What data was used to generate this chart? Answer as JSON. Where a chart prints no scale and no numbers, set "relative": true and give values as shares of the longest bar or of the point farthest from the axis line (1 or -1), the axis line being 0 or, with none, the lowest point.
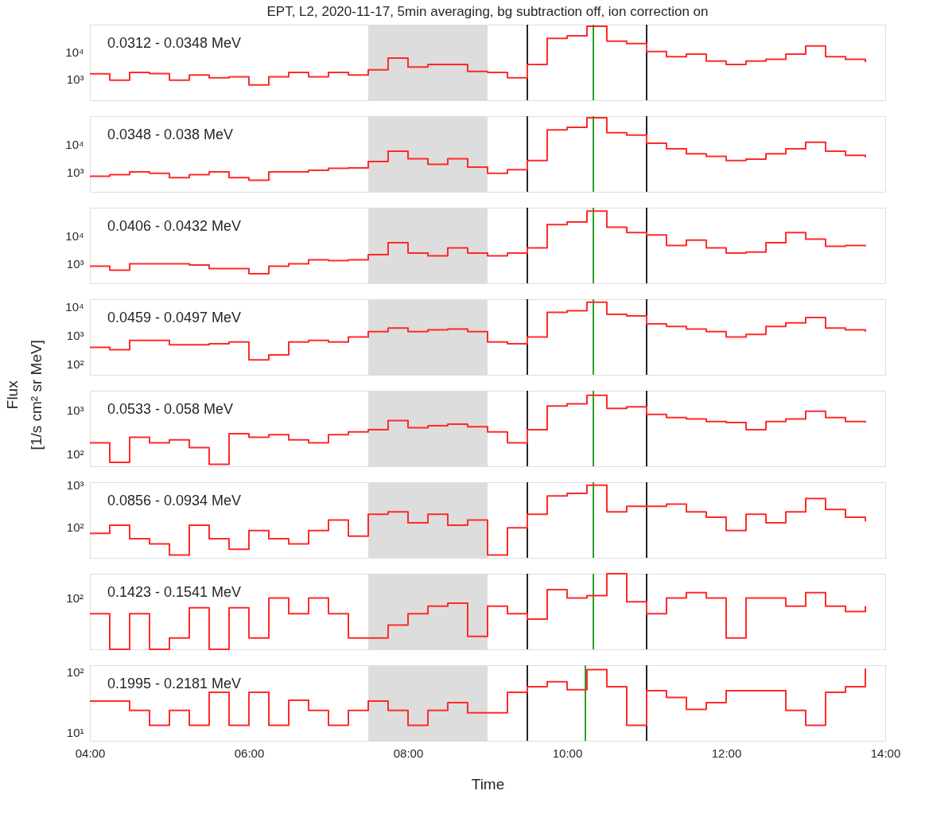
{
  "chart_data": [
    {
      "type": "step",
      "title": "EPT, L2, 2020-11-17, 5min averaging, bg subtraction off, ion correction on",
      "annotations": [
        "0.0312 - 0.0348 MeV"
      ],
      "log": "y",
      "tick_labels": "y",
      "x": [
        4.0,
        4.25,
        4.5,
        4.75,
        5.0,
        5.25,
        5.5,
        5.75,
        6.0,
        6.25,
        6.5,
        6.75,
        7.0,
        7.25,
        7.5,
        7.75,
        8.0,
        8.25,
        8.5,
        8.75,
        9.0,
        9.25,
        9.5,
        9.75,
        10.0,
        10.25,
        10.5,
        10.75,
        11.0,
        11.25,
        11.5,
        11.75,
        12.0,
        12.25,
        12.5,
        12.75,
        13.0,
        13.25,
        13.5,
        13.75
      ],
      "series": [
        {
          "color": "#ff2a2a",
          "values": [
            1550,
            900,
            1750,
            1600,
            900,
            1400,
            1100,
            1200,
            600,
            1200,
            1750,
            1200,
            1750,
            1400,
            2200,
            6000,
            2800,
            3500,
            3500,
            1900,
            1750,
            1100,
            3500,
            33000,
            41000,
            93000,
            26000,
            21000,
            10700,
            6800,
            8500,
            4700,
            3500,
            4700,
            5400,
            8500,
            17000,
            6800,
            5400,
            4300
          ]
        }
      ],
      "xlim": [
        4,
        14
      ],
      "ylim": [
        160,
        107000
      ],
      "yticks": [
        {
          "value": 1000,
          "label": "10³"
        },
        {
          "value": 10000,
          "label": "10⁴"
        }
      ],
      "bands": [
        {
          "axis": "x",
          "from": 7.5,
          "to": 9.0,
          "color": "#dddddd"
        }
      ],
      "ref_lines": [
        {
          "axis": "x",
          "value": 9.5,
          "color": "#262626"
        },
        {
          "axis": "x",
          "value": 11.0,
          "color": "#262626"
        },
        {
          "axis": "x",
          "value": 10.33,
          "color": "#2ca02c"
        }
      ]
    },
    {
      "type": "step",
      "annotations": [
        "0.0348 - 0.038 MeV"
      ],
      "log": "y",
      "tick_labels": "y",
      "x": [
        4.0,
        4.25,
        4.5,
        4.75,
        5.0,
        5.25,
        5.5,
        5.75,
        6.0,
        6.25,
        6.5,
        6.75,
        7.0,
        7.25,
        7.5,
        7.75,
        8.0,
        8.25,
        8.5,
        8.75,
        9.0,
        9.25,
        9.5,
        9.75,
        10.0,
        10.25,
        10.5,
        10.75,
        11.0,
        11.25,
        11.5,
        11.75,
        12.0,
        12.25,
        12.5,
        12.75,
        13.0,
        13.25,
        13.5,
        13.75
      ],
      "series": [
        {
          "color": "#ff2a2a",
          "values": [
            700,
            800,
            1000,
            900,
            620,
            800,
            1000,
            620,
            500,
            1000,
            1000,
            1150,
            1350,
            1400,
            2400,
            5700,
            3000,
            1900,
            3000,
            1500,
            900,
            1200,
            2600,
            34000,
            42000,
            93000,
            27000,
            22000,
            11000,
            7000,
            4600,
            3700,
            2600,
            2900,
            4600,
            7000,
            12000,
            5700,
            4000,
            3400
          ]
        }
      ],
      "xlim": [
        4,
        14
      ],
      "ylim": [
        190,
        107000
      ],
      "yticks": [
        {
          "value": 1000,
          "label": "10³"
        },
        {
          "value": 10000,
          "label": "10⁴"
        }
      ],
      "bands": [
        {
          "axis": "x",
          "from": 7.5,
          "to": 9.0,
          "color": "#dddddd"
        }
      ],
      "ref_lines": [
        {
          "axis": "x",
          "value": 9.5,
          "color": "#262626"
        },
        {
          "axis": "x",
          "value": 11.0,
          "color": "#262626"
        },
        {
          "axis": "x",
          "value": 10.33,
          "color": "#2ca02c"
        }
      ]
    },
    {
      "type": "step",
      "annotations": [
        "0.0406 - 0.0432 MeV"
      ],
      "log": "y",
      "tick_labels": "y",
      "x": [
        4.0,
        4.25,
        4.5,
        4.75,
        5.0,
        5.25,
        5.5,
        5.75,
        6.0,
        6.25,
        6.5,
        6.75,
        7.0,
        7.25,
        7.5,
        7.75,
        8.0,
        8.25,
        8.5,
        8.75,
        9.0,
        9.25,
        9.5,
        9.75,
        10.0,
        10.25,
        10.5,
        10.75,
        11.0,
        11.25,
        11.5,
        11.75,
        12.0,
        12.25,
        12.5,
        12.75,
        13.0,
        13.25,
        13.5,
        13.75
      ],
      "series": [
        {
          "color": "#ff2a2a",
          "values": [
            820,
            590,
            1000,
            1000,
            1000,
            900,
            670,
            670,
            440,
            820,
            1000,
            1380,
            1300,
            1380,
            2100,
            5600,
            2400,
            1900,
            3700,
            2400,
            1900,
            2400,
            3700,
            25000,
            31000,
            76000,
            20000,
            13000,
            10700,
            4500,
            7000,
            3700,
            2400,
            2600,
            5600,
            13000,
            7600,
            4200,
            4500,
            4200
          ]
        }
      ],
      "xlim": [
        4,
        14
      ],
      "ylim": [
        200,
        100000
      ],
      "yticks": [
        {
          "value": 1000,
          "label": "10³"
        },
        {
          "value": 10000,
          "label": "10⁴"
        }
      ],
      "bands": [
        {
          "axis": "x",
          "from": 7.5,
          "to": 9.0,
          "color": "#dddddd"
        }
      ],
      "ref_lines": [
        {
          "axis": "x",
          "value": 9.5,
          "color": "#262626"
        },
        {
          "axis": "x",
          "value": 11.0,
          "color": "#262626"
        },
        {
          "axis": "x",
          "value": 10.33,
          "color": "#2ca02c"
        }
      ]
    },
    {
      "type": "step",
      "annotations": [
        "0.0459 - 0.0497 MeV"
      ],
      "log": "y",
      "tick_labels": "y",
      "x": [
        4.0,
        4.25,
        4.5,
        4.75,
        5.0,
        5.25,
        5.5,
        5.75,
        6.0,
        6.25,
        6.5,
        6.75,
        7.0,
        7.25,
        7.5,
        7.75,
        8.0,
        8.25,
        8.5,
        8.75,
        9.0,
        9.25,
        9.5,
        9.75,
        10.0,
        10.25,
        10.5,
        10.75,
        11.0,
        11.25,
        11.5,
        11.75,
        12.0,
        12.25,
        12.5,
        12.75,
        13.0,
        13.25,
        13.5,
        13.75
      ],
      "series": [
        {
          "color": "#ff2a2a",
          "values": [
            390,
            320,
            680,
            680,
            480,
            480,
            520,
            600,
            140,
            210,
            600,
            680,
            600,
            900,
            1380,
            1850,
            1380,
            1600,
            1700,
            1380,
            600,
            520,
            900,
            6600,
            7500,
            15000,
            5600,
            4900,
            2600,
            2100,
            1700,
            1380,
            900,
            1100,
            2100,
            2800,
            4300,
            1850,
            1600,
            1380
          ]
        }
      ],
      "xlim": [
        4,
        14
      ],
      "ylim": [
        42,
        19000
      ],
      "yticks": [
        {
          "value": 100,
          "label": "10²"
        },
        {
          "value": 1000,
          "label": "10³"
        },
        {
          "value": 10000,
          "label": "10⁴"
        }
      ],
      "bands": [
        {
          "axis": "x",
          "from": 7.5,
          "to": 9.0,
          "color": "#dddddd"
        }
      ],
      "ref_lines": [
        {
          "axis": "x",
          "value": 9.5,
          "color": "#262626"
        },
        {
          "axis": "x",
          "value": 11.0,
          "color": "#262626"
        },
        {
          "axis": "x",
          "value": 10.33,
          "color": "#2ca02c"
        }
      ]
    },
    {
      "type": "step",
      "ylabel": "Flux\n[1/s cm² sr MeV]",
      "annotations": [
        "0.0533 - 0.058 MeV"
      ],
      "log": "y",
      "tick_labels": "y",
      "x": [
        4.0,
        4.25,
        4.5,
        4.75,
        5.0,
        5.25,
        5.5,
        5.75,
        6.0,
        6.25,
        6.5,
        6.75,
        7.0,
        7.25,
        7.5,
        7.75,
        8.0,
        8.25,
        8.5,
        8.75,
        9.0,
        9.25,
        9.5,
        9.75,
        10.0,
        10.25,
        10.5,
        10.75,
        11.0,
        11.25,
        11.5,
        11.75,
        12.0,
        12.25,
        12.5,
        12.75,
        13.0,
        13.25,
        13.5,
        13.75
      ],
      "series": [
        {
          "color": "#ff2a2a",
          "values": [
            180,
            64,
            240,
            180,
            210,
            140,
            58,
            290,
            240,
            275,
            210,
            180,
            275,
            320,
            360,
            580,
            400,
            440,
            480,
            420,
            320,
            180,
            360,
            1250,
            1400,
            2200,
            1100,
            1200,
            800,
            680,
            630,
            550,
            520,
            360,
            550,
            630,
            950,
            680,
            550,
            520
          ]
        }
      ],
      "xlim": [
        4,
        14
      ],
      "ylim": [
        52,
        2800
      ],
      "yticks": [
        {
          "value": 100,
          "label": "10²"
        },
        {
          "value": 1000,
          "label": "10³"
        }
      ],
      "bands": [
        {
          "axis": "x",
          "from": 7.5,
          "to": 9.0,
          "color": "#dddddd"
        }
      ],
      "ref_lines": [
        {
          "axis": "x",
          "value": 9.5,
          "color": "#262626"
        },
        {
          "axis": "x",
          "value": 11.0,
          "color": "#262626"
        },
        {
          "axis": "x",
          "value": 10.33,
          "color": "#2ca02c"
        }
      ]
    },
    {
      "type": "step",
      "annotations": [
        "0.0856 - 0.0934 MeV"
      ],
      "log": "y",
      "tick_labels": "y",
      "x": [
        4.0,
        4.25,
        4.5,
        4.75,
        5.0,
        5.25,
        5.5,
        5.75,
        6.0,
        6.25,
        6.5,
        6.75,
        7.0,
        7.25,
        7.5,
        7.75,
        8.0,
        8.25,
        8.5,
        8.75,
        9.0,
        9.25,
        9.5,
        9.75,
        10.0,
        10.25,
        10.5,
        10.75,
        11.0,
        11.25,
        11.5,
        11.75,
        12.0,
        12.25,
        12.5,
        12.75,
        13.0,
        13.25,
        13.5,
        13.75
      ],
      "series": [
        {
          "color": "#ff2a2a",
          "values": [
            70,
            110,
            52,
            39,
            21,
            110,
            52,
            29,
            81,
            52,
            39,
            81,
            145,
            60,
            200,
            230,
            125,
            200,
            110,
            145,
            21,
            95,
            200,
            550,
            640,
            1000,
            230,
            310,
            310,
            350,
            230,
            170,
            81,
            200,
            125,
            230,
            480,
            260,
            170,
            135
          ]
        }
      ],
      "xlim": [
        4,
        14
      ],
      "ylim": [
        18,
        1180
      ],
      "yticks": [
        {
          "value": 100,
          "label": "10²"
        },
        {
          "value": 1000,
          "label": "10³"
        }
      ],
      "bands": [
        {
          "axis": "x",
          "from": 7.5,
          "to": 9.0,
          "color": "#dddddd"
        }
      ],
      "ref_lines": [
        {
          "axis": "x",
          "value": 9.5,
          "color": "#262626"
        },
        {
          "axis": "x",
          "value": 11.0,
          "color": "#262626"
        },
        {
          "axis": "x",
          "value": 10.33,
          "color": "#2ca02c"
        }
      ]
    },
    {
      "type": "step",
      "annotations": [
        "0.1423 - 0.1541 MeV",
        "10²"
      ],
      "relative": true,
      "tick_labels": "y",
      "x": [
        4.0,
        4.25,
        4.5,
        4.75,
        5.0,
        5.25,
        5.5,
        5.75,
        6.0,
        6.25,
        6.5,
        6.75,
        7.0,
        7.25,
        7.5,
        7.75,
        8.0,
        8.25,
        8.5,
        8.75,
        9.0,
        9.25,
        9.5,
        9.75,
        10.0,
        10.25,
        10.5,
        10.75,
        11.0,
        11.25,
        11.5,
        11.75,
        12.0,
        12.25,
        12.5,
        12.75,
        13.0,
        13.25,
        13.5,
        13.75
      ],
      "series": [
        {
          "color": "#ff2a2a",
          "values": [
            0.47,
            0,
            0.47,
            0,
            0.15,
            0.55,
            0,
            0.55,
            0.15,
            0.68,
            0.47,
            0.68,
            0.47,
            0.15,
            0.15,
            0.32,
            0.47,
            0.57,
            0.61,
            0.17,
            0.57,
            0.47,
            0.4,
            0.79,
            0.68,
            0.71,
            1,
            0.63,
            0.47,
            0.68,
            0.75,
            0.68,
            0.15,
            0.68,
            0.68,
            0.57,
            0.75,
            0.57,
            0.5,
            0.57
          ]
        }
      ],
      "xlim": [
        4,
        14
      ],
      "bands": [
        {
          "axis": "x",
          "from": 7.5,
          "to": 9.0,
          "color": "#dddddd"
        }
      ],
      "ref_lines": [
        {
          "axis": "x",
          "value": 9.5,
          "color": "#262626"
        },
        {
          "axis": "x",
          "value": 11.0,
          "color": "#262626"
        },
        {
          "axis": "x",
          "value": 10.33,
          "color": "#2ca02c"
        }
      ]
    },
    {
      "type": "step",
      "xlabel": "Time",
      "annotations": [
        "0.1995 - 0.2181 MeV"
      ],
      "log": "y",
      "x": [
        4.0,
        4.25,
        4.5,
        4.75,
        5.0,
        5.25,
        5.5,
        5.75,
        6.0,
        6.25,
        6.5,
        6.75,
        7.0,
        7.25,
        7.5,
        7.75,
        8.0,
        8.25,
        8.5,
        8.75,
        9.0,
        9.25,
        9.5,
        9.75,
        10.0,
        10.25,
        10.5,
        10.75,
        11.0,
        11.25,
        11.5,
        11.75,
        12.0,
        12.25,
        12.5,
        12.75,
        13.0,
        13.25,
        13.5,
        13.75
      ],
      "series": [
        {
          "color": "#ff2a2a",
          "values": [
            33,
            null,
            23,
            13,
            23,
            13,
            46,
            13,
            46,
            13,
            34,
            23,
            13,
            23,
            33,
            23,
            13,
            23,
            31,
            21,
            null,
            46,
            57,
            69,
            51,
            110,
            57,
            13,
            49,
            38,
            24,
            31,
            49,
            49,
            49,
            23,
            13,
            46,
            57,
            114
          ]
        }
      ],
      "xlim": [
        4,
        14
      ],
      "xticks": [
        {
          "value": 4,
          "label": "04:00"
        },
        {
          "value": 6,
          "label": "06:00"
        },
        {
          "value": 8,
          "label": "08:00"
        },
        {
          "value": 10,
          "label": "10:00"
        },
        {
          "value": 12,
          "label": "12:00"
        },
        {
          "value": 14,
          "label": "14:00"
        }
      ],
      "ylim": [
        7.2,
        130
      ],
      "yticks": [
        {
          "value": 10,
          "label": "10¹"
        },
        {
          "value": 100,
          "label": "10²"
        }
      ],
      "bands": [
        {
          "axis": "x",
          "from": 7.5,
          "to": 9.0,
          "color": "#dddddd"
        }
      ],
      "ref_lines": [
        {
          "axis": "x",
          "value": 9.5,
          "color": "#262626"
        },
        {
          "axis": "x",
          "value": 11.0,
          "color": "#262626"
        },
        {
          "axis": "x",
          "value": 10.23,
          "color": "#2ca02c"
        }
      ]
    }
  ]
}
